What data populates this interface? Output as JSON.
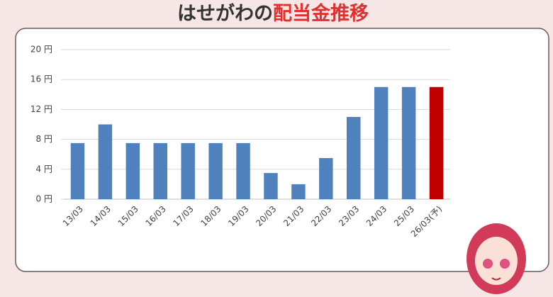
{
  "chart_data": {
    "type": "bar",
    "title": [
      "はせがわの",
      "配当金推移"
    ],
    "categories": [
      "13/03",
      "14/03",
      "15/03",
      "16/03",
      "17/03",
      "18/03",
      "19/03",
      "20/03",
      "21/03",
      "22/03",
      "23/03",
      "24/03",
      "25/03",
      "26/03(予)"
    ],
    "values": [
      7.5,
      10,
      7.5,
      7.5,
      7.5,
      7.5,
      7.5,
      3.5,
      2,
      5.5,
      11,
      15,
      15,
      15
    ],
    "colors": [
      "#4f81bd",
      "#4f81bd",
      "#4f81bd",
      "#4f81bd",
      "#4f81bd",
      "#4f81bd",
      "#4f81bd",
      "#4f81bd",
      "#4f81bd",
      "#4f81bd",
      "#4f81bd",
      "#4f81bd",
      "#4f81bd",
      "#c00000"
    ],
    "ylim": [
      0,
      20
    ],
    "yticks": [
      {
        "value": 0,
        "label": "0 円"
      },
      {
        "value": 4,
        "label": "4 円"
      },
      {
        "value": 8,
        "label": "8 円"
      },
      {
        "value": 12,
        "label": "12 円"
      },
      {
        "value": 16,
        "label": "16 円"
      },
      {
        "value": 20,
        "label": "20 円"
      }
    ],
    "grid": true
  }
}
